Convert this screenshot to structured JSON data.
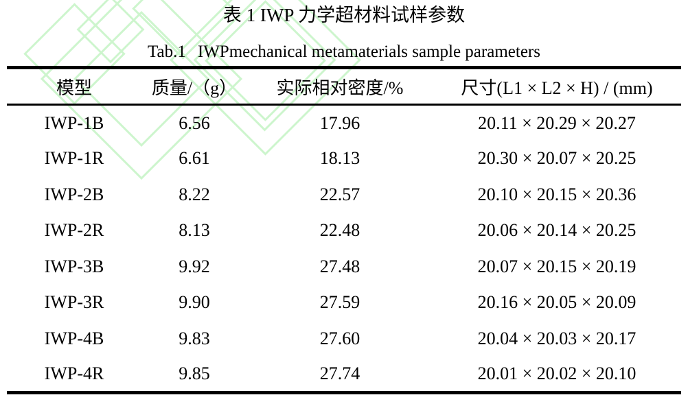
{
  "captions": {
    "title_cn": "表 1 IWP 力学超材料试样参数",
    "title_en_label": "Tab.1",
    "title_en_text": "IWPmechanical metamaterials sample parameters"
  },
  "table": {
    "headers": {
      "model": "模型",
      "mass": "质量/（g）",
      "density": "实际相对密度/%",
      "size": "尺寸(L1 × L2 × H) / (mm)"
    },
    "rows": [
      {
        "model": "IWP-1B",
        "mass": "6.56",
        "density": "17.96",
        "size": "20.11 × 20.29 × 20.27"
      },
      {
        "model": "IWP-1R",
        "mass": "6.61",
        "density": "18.13",
        "size": "20.30 × 20.07 × 20.25"
      },
      {
        "model": "IWP-2B",
        "mass": "8.22",
        "density": "22.57",
        "size": "20.10 × 20.15 × 20.36"
      },
      {
        "model": "IWP-2R",
        "mass": "8.13",
        "density": "22.48",
        "size": "20.06 × 20.14 × 20.25"
      },
      {
        "model": "IWP-3B",
        "mass": "9.92",
        "density": "27.48",
        "size": "20.07 × 20.15 × 20.19"
      },
      {
        "model": "IWP-3R",
        "mass": "9.90",
        "density": "27.59",
        "size": "20.16 × 20.05 × 20.09"
      },
      {
        "model": "IWP-4B",
        "mass": "9.83",
        "density": "27.60",
        "size": "20.04 × 20.03 × 20.17"
      },
      {
        "model": "IWP-4R",
        "mass": "9.85",
        "density": "27.74",
        "size": "20.01 × 20.02 × 20.10"
      }
    ]
  },
  "colors": {
    "text": "#000000",
    "rule": "#000000",
    "watermark_green": "#cdf5cd"
  }
}
